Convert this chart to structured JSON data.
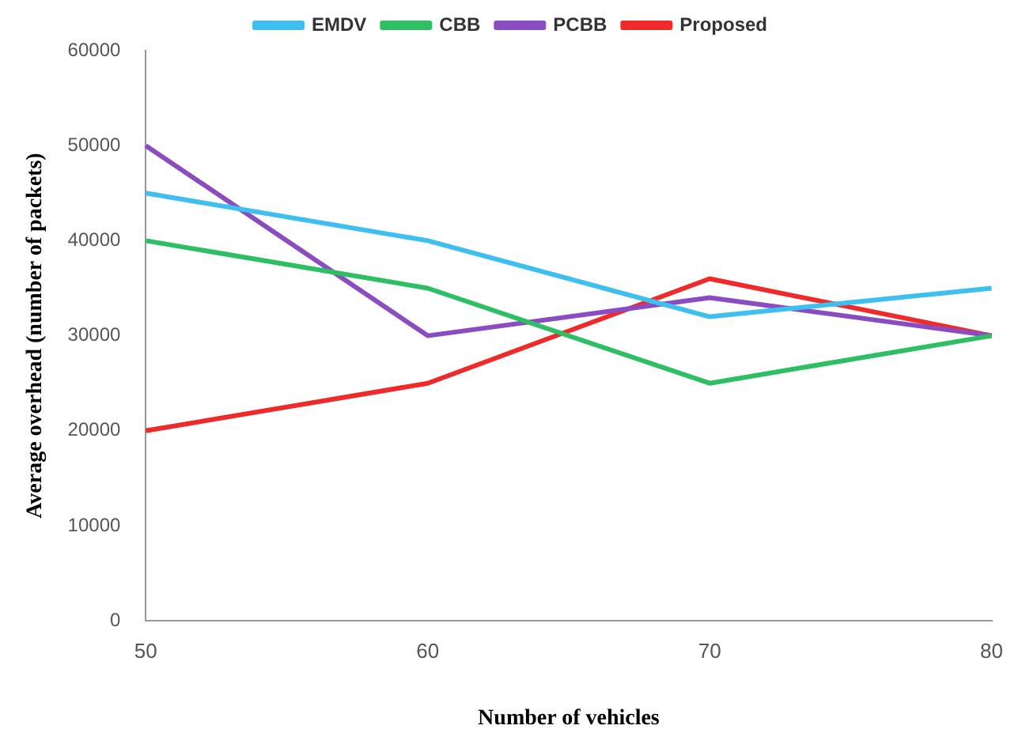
{
  "chart_data": {
    "type": "line",
    "xlabel": "Number of vehicles",
    "ylabel": "Average overhead (number of packets)",
    "categories": [
      "50",
      "60",
      "70",
      "80"
    ],
    "series": [
      {
        "name": "EMDV",
        "color": "#3fbff0",
        "values": [
          45000,
          40000,
          32000,
          35000
        ]
      },
      {
        "name": "CBB",
        "color": "#2ebf64",
        "values": [
          40000,
          35000,
          25000,
          30000
        ]
      },
      {
        "name": "PCBB",
        "color": "#8a4cc0",
        "values": [
          50000,
          30000,
          34000,
          30000
        ]
      },
      {
        "name": "Proposed",
        "color": "#ee2a2a",
        "values": [
          20000,
          25000,
          36000,
          30000
        ]
      }
    ],
    "ylim": [
      0,
      60000
    ],
    "yticks": [
      0,
      10000,
      20000,
      30000,
      40000,
      50000,
      60000
    ],
    "grid": false,
    "legend": "top",
    "marker": "none",
    "line_style": "solid"
  }
}
